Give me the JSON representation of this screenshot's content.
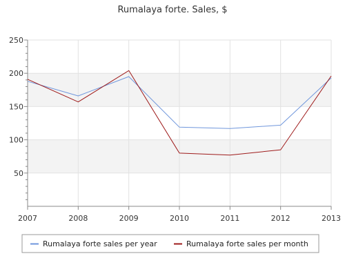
{
  "chart_data": {
    "type": "line",
    "title": "Rumalaya forte. Sales, $",
    "xlabel": "",
    "ylabel": "",
    "x": [
      "2007",
      "2008",
      "2009",
      "2010",
      "2011",
      "2012",
      "2013"
    ],
    "xlim": [
      2007,
      2013
    ],
    "ylim": [
      0,
      250
    ],
    "yticks": [
      "50",
      "100",
      "150",
      "200",
      "250"
    ],
    "grid": true,
    "legend_position": "bottom",
    "series": [
      {
        "name": "Rumalaya forte sales per year",
        "color": "#6f96dc",
        "values": [
          188,
          166,
          195,
          119,
          117,
          122,
          193
        ]
      },
      {
        "name": "Rumalaya forte sales per month",
        "color": "#9e1a1a",
        "values": [
          191,
          157,
          204,
          80,
          77,
          85,
          196
        ]
      }
    ]
  }
}
